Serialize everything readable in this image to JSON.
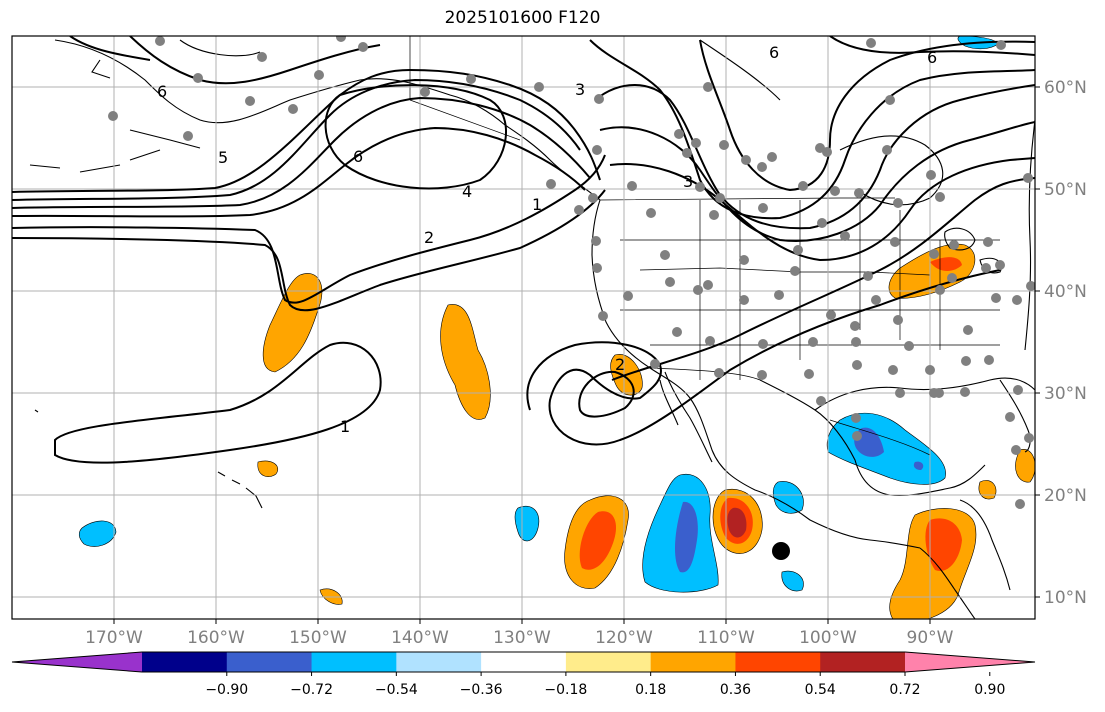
{
  "title": "2025101600 F120",
  "lon_ticks": [
    "170°W",
    "160°W",
    "150°W",
    "140°W",
    "130°W",
    "120°W",
    "110°W",
    "100°W",
    "90°W"
  ],
  "lat_ticks": [
    "60°N",
    "50°N",
    "40°N",
    "30°N",
    "20°N",
    "10°N"
  ],
  "colorbar": {
    "ticks": [
      "−0.90",
      "−0.72",
      "−0.54",
      "−0.36",
      "−0.18",
      "0.18",
      "0.36",
      "0.54",
      "0.72",
      "0.90"
    ],
    "colors": [
      "#9932cc",
      "#00008b",
      "#3a5fcd",
      "#00bfff",
      "#b0e2ff",
      "#ffffff",
      "#ffec8b",
      "#ffa500",
      "#ff4500",
      "#b22222",
      "#ff82ab"
    ]
  },
  "contour_labels": [
    "6",
    "5",
    "6",
    "4",
    "2",
    "1",
    "3",
    "6",
    "6",
    "2",
    "1",
    "3"
  ],
  "colors": {
    "orange": "#ffa500",
    "red_orange": "#ff4500",
    "dark_red": "#b22222",
    "light_blue": "#00bfff",
    "blue": "#3a5fcd",
    "station": "#808080",
    "grid": "#b0b0b0"
  }
}
